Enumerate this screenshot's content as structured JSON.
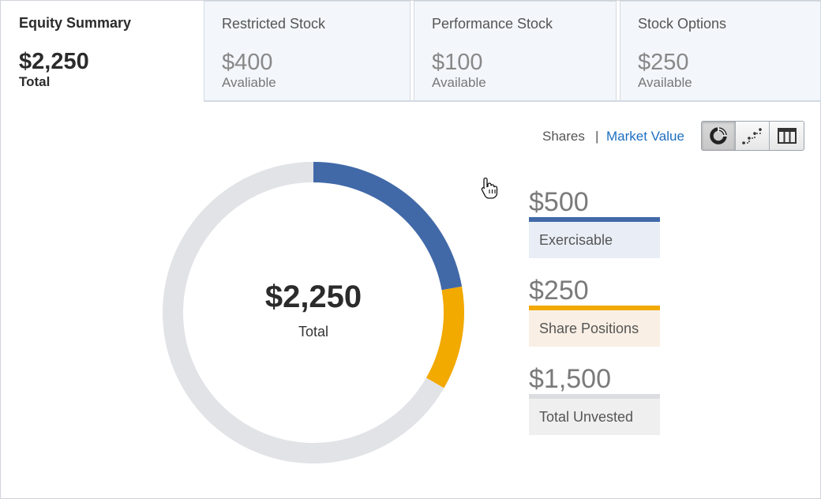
{
  "tabs": [
    {
      "title": "Equity Summary",
      "amount": "$2,250",
      "sub": "Total",
      "active": true
    },
    {
      "title": "Restricted Stock",
      "amount": "$400",
      "sub": "Avaliable",
      "active": false
    },
    {
      "title": "Performance Stock",
      "amount": "$100",
      "sub": "Available",
      "active": false
    },
    {
      "title": "Stock Options",
      "amount": "$250",
      "sub": "Available",
      "active": false
    }
  ],
  "toggle": {
    "shares": "Shares",
    "separator": "|",
    "market_value": "Market Value"
  },
  "view_buttons": [
    {
      "icon": "donut-chart-icon",
      "active": true
    },
    {
      "icon": "step-chart-icon",
      "active": false
    },
    {
      "icon": "table-columns-icon",
      "active": false
    }
  ],
  "donut": {
    "center_value": "$2,250",
    "center_label": "Total"
  },
  "chart_data": {
    "type": "pie",
    "variant": "donut",
    "categories": [
      "Exercisable",
      "Share Positions",
      "Total Unvested"
    ],
    "values": [
      500,
      250,
      1500
    ],
    "total": 2250,
    "colors": [
      "#4169a8",
      "#f2a900",
      "#e2e3e7"
    ]
  },
  "legend": [
    {
      "value": "$500",
      "label": "Exercisable",
      "bar_color": "#4169a8",
      "bg_color": "#e9eef6"
    },
    {
      "value": "$250",
      "label": "Share Positions",
      "bar_color": "#f2a900",
      "bg_color": "#f9efe4"
    },
    {
      "value": "$1,500",
      "label": "Total Unvested",
      "bar_color": "#dcdde0",
      "bg_color": "#efeff0"
    }
  ]
}
